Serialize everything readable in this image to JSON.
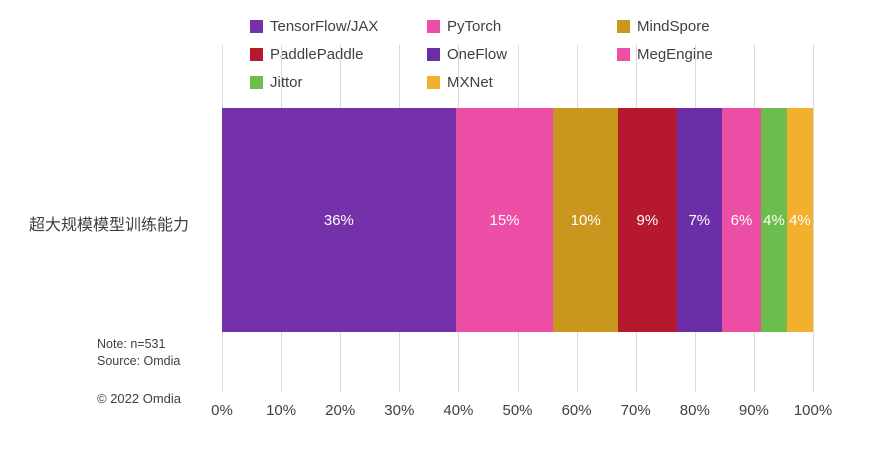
{
  "chart_data": {
    "type": "bar",
    "subtype": "horizontal-stacked-100",
    "title": "",
    "category": "超大规模模型训练能力",
    "series": [
      {
        "name": "TensorFlow/JAX",
        "value": 36,
        "label": "36%",
        "color": "#7431a9"
      },
      {
        "name": "PyTorch",
        "value": 15,
        "label": "15%",
        "color": "#ec4fa5"
      },
      {
        "name": "MindSpore",
        "value": 10,
        "label": "10%",
        "color": "#c9961e"
      },
      {
        "name": "PaddlePaddle",
        "value": 9,
        "label": "9%",
        "color": "#b5182f"
      },
      {
        "name": "OneFlow",
        "value": 7,
        "label": "7%",
        "color": "#6c2ea6"
      },
      {
        "name": "MegEngine",
        "value": 6,
        "label": "6%",
        "color": "#ec4fa5"
      },
      {
        "name": "Jittor",
        "value": 4,
        "label": "4%",
        "color": "#6bbe4d"
      },
      {
        "name": "MXNet",
        "value": 4,
        "label": "4%",
        "color": "#f2b02c"
      }
    ],
    "x_ticks": [
      "0%",
      "10%",
      "20%",
      "30%",
      "40%",
      "50%",
      "60%",
      "70%",
      "80%",
      "90%",
      "100%"
    ],
    "xlim": [
      0,
      100
    ],
    "grid": true,
    "gridline_color": "#d9d9d9",
    "legend_position": "top",
    "data_label_color": "#ffffff"
  },
  "notes": {
    "note": "Note: n=531",
    "source": "Source: Omdia",
    "copyright": "© 2022 Omdia"
  }
}
